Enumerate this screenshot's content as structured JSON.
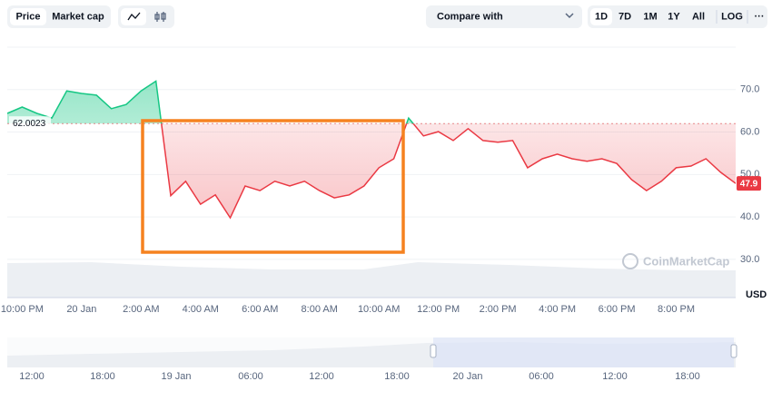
{
  "toolbar": {
    "price": "Price",
    "market_cap": "Market cap",
    "compare": "Compare with",
    "ranges": [
      "1D",
      "7D",
      "1M",
      "1Y",
      "All"
    ],
    "log": "LOG",
    "more": "···"
  },
  "chart_data": {
    "type": "line",
    "unit": "USD",
    "watermark": "CoinMarketCap",
    "categories": [
      null,
      "10:00 PM",
      null,
      null,
      null,
      "20 Jan",
      null,
      null,
      null,
      "2:00 AM",
      null,
      null,
      null,
      "4:00 AM",
      null,
      null,
      null,
      "6:00 AM",
      null,
      null,
      null,
      "8:00 AM",
      null,
      null,
      null,
      "10:00 AM",
      null,
      null,
      null,
      "12:00 PM",
      null,
      null,
      null,
      "2:00 PM",
      null,
      null,
      null,
      "4:00 PM",
      null,
      null,
      null,
      "6:00 PM",
      null,
      null,
      null,
      "8:00 PM",
      null,
      null,
      null,
      null
    ],
    "series": [
      {
        "name": "Price",
        "values": [
          64.4,
          65.9,
          64.4,
          63.3,
          69.7,
          69.1,
          68.7,
          65.5,
          66.5,
          69.7,
          72.0,
          45.0,
          48.4,
          43.0,
          45.2,
          39.8,
          47.3,
          46.2,
          48.4,
          47.3,
          48.4,
          46.2,
          44.5,
          45.2,
          47.3,
          51.6,
          53.7,
          63.3,
          59.1,
          60.1,
          58.0,
          60.8,
          58.0,
          57.6,
          58.0,
          51.6,
          53.7,
          54.8,
          53.7,
          53.1,
          53.7,
          52.6,
          48.8,
          46.2,
          48.4,
          51.6,
          52.0,
          53.7,
          50.5,
          47.9
        ]
      }
    ],
    "baseline": 62.0023,
    "up_color": "#16c784",
    "down_color": "#ea3943",
    "ylim": [
      21,
      80
    ],
    "yticks": [
      {
        "value": 30,
        "label": "30.0"
      },
      {
        "value": 40,
        "label": "40.0"
      },
      {
        "value": 50,
        "label": "50.0"
      },
      {
        "value": 60,
        "label": "60.0"
      },
      {
        "value": 70,
        "label": "70.0"
      }
    ],
    "grid": true
  },
  "navigator": {
    "labels": [
      "12:00",
      "18:00",
      "19 Jan",
      "06:00",
      "12:00",
      "18:00",
      "20 Jan",
      "06:00",
      "12:00",
      "18:00"
    ]
  }
}
